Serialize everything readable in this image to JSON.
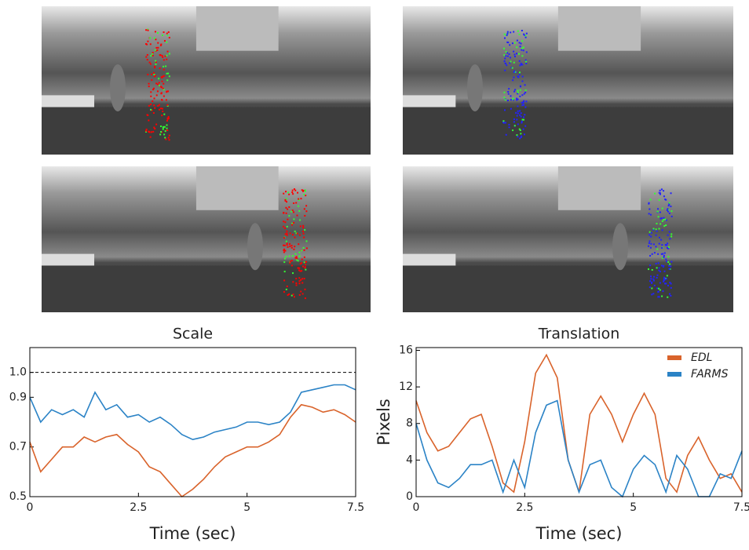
{
  "chart_data": [
    {
      "type": "line",
      "title": "Scale",
      "x_label": "Time (sec)",
      "x": [
        0,
        0.25,
        0.5,
        0.75,
        1,
        1.25,
        1.5,
        1.75,
        2,
        2.25,
        2.5,
        2.75,
        3,
        3.25,
        3.5,
        3.75,
        4,
        4.25,
        4.5,
        4.75,
        5,
        5.25,
        5.5,
        5.75,
        6,
        6.25,
        6.5,
        6.75,
        7,
        7.25,
        7.5
      ],
      "series": [
        {
          "color": "#2b83c6",
          "values": [
            0.9,
            0.8,
            0.85,
            0.83,
            0.85,
            0.82,
            0.92,
            0.85,
            0.87,
            0.82,
            0.83,
            0.8,
            0.82,
            0.79,
            0.75,
            0.73,
            0.74,
            0.76,
            0.77,
            0.78,
            0.8,
            0.8,
            0.79,
            0.8,
            0.84,
            0.92,
            0.93,
            0.94,
            0.95,
            0.95,
            0.93
          ]
        },
        {
          "color": "#d9632b",
          "values": [
            0.72,
            0.6,
            0.65,
            0.7,
            0.7,
            0.74,
            0.72,
            0.74,
            0.75,
            0.71,
            0.68,
            0.62,
            0.6,
            0.55,
            0.5,
            0.53,
            0.57,
            0.62,
            0.66,
            0.68,
            0.7,
            0.7,
            0.72,
            0.75,
            0.82,
            0.87,
            0.86,
            0.84,
            0.85,
            0.83,
            0.8
          ]
        }
      ],
      "reference_line": 1,
      "xlim": [
        0,
        7.5
      ],
      "xticks": [
        0,
        2.5,
        5,
        7.5
      ],
      "ylim": [
        0.5,
        1.1
      ],
      "yticks": [
        0.5,
        0.7,
        0.9,
        {
          "value": 1,
          "label": "1.0"
        }
      ]
    },
    {
      "type": "line",
      "title": "Translation",
      "x_label": "Time (sec)",
      "y_label": "Pixels",
      "x": [
        0,
        0.25,
        0.5,
        0.75,
        1,
        1.25,
        1.5,
        1.75,
        2,
        2.25,
        2.5,
        2.75,
        3,
        3.25,
        3.5,
        3.75,
        4,
        4.25,
        4.5,
        4.75,
        5,
        5.25,
        5.5,
        5.75,
        6,
        6.25,
        6.5,
        6.75,
        7,
        7.25,
        7.5
      ],
      "series": [
        {
          "name": "EDL",
          "color": "#d9632b",
          "values": [
            10.5,
            7,
            5,
            5.5,
            7,
            8.5,
            9,
            5.5,
            1.5,
            0.5,
            6,
            13.5,
            15.5,
            13,
            4,
            0.5,
            9,
            11,
            9,
            6,
            9,
            11.3,
            9,
            2,
            0.5,
            4.5,
            6.5,
            4,
            2,
            2.5,
            0.5
          ]
        },
        {
          "name": "FARMS",
          "color": "#2b83c6",
          "values": [
            8,
            4,
            1.5,
            1,
            2,
            3.5,
            3.5,
            4,
            0.5,
            4,
            1,
            7,
            10,
            10.5,
            4,
            0.5,
            3.5,
            4,
            1,
            0,
            3,
            4.5,
            3.5,
            0.5,
            4.5,
            3,
            0,
            0,
            2.5,
            2,
            5
          ]
        }
      ],
      "legend": "upper right",
      "xlim": [
        0,
        7.5
      ],
      "xticks": [
        0,
        2.5,
        5,
        7.5
      ],
      "ylim": [
        0,
        16.3
      ],
      "yticks": [
        0,
        4,
        8,
        12,
        16
      ]
    }
  ]
}
